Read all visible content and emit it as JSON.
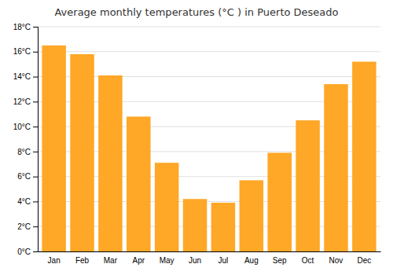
{
  "chart_data": {
    "type": "bar",
    "title": "Average monthly temperatures (°C ) in Puerto Deseado",
    "categories": [
      "Jan",
      "Feb",
      "Mar",
      "Apr",
      "May",
      "Jun",
      "Jul",
      "Aug",
      "Sep",
      "Oct",
      "Nov",
      "Dec"
    ],
    "values": [
      16.5,
      15.8,
      14.1,
      10.8,
      7.1,
      4.2,
      3.9,
      5.7,
      7.9,
      10.5,
      13.4,
      15.2
    ],
    "color": "#FFA726",
    "ylim": [
      0,
      18
    ],
    "yticks": [
      {
        "value": 0,
        "label": "0°C"
      },
      {
        "value": 2,
        "label": "2°C"
      },
      {
        "value": 4,
        "label": "4°C"
      },
      {
        "value": 6,
        "label": "6°C"
      },
      {
        "value": 8,
        "label": "8°C"
      },
      {
        "value": 10,
        "label": "10°C"
      },
      {
        "value": 12,
        "label": "12°C"
      },
      {
        "value": 14,
        "label": "14°C"
      },
      {
        "value": 16,
        "label": "16°C"
      },
      {
        "value": 18,
        "label": "18°C"
      }
    ],
    "grid": true
  }
}
